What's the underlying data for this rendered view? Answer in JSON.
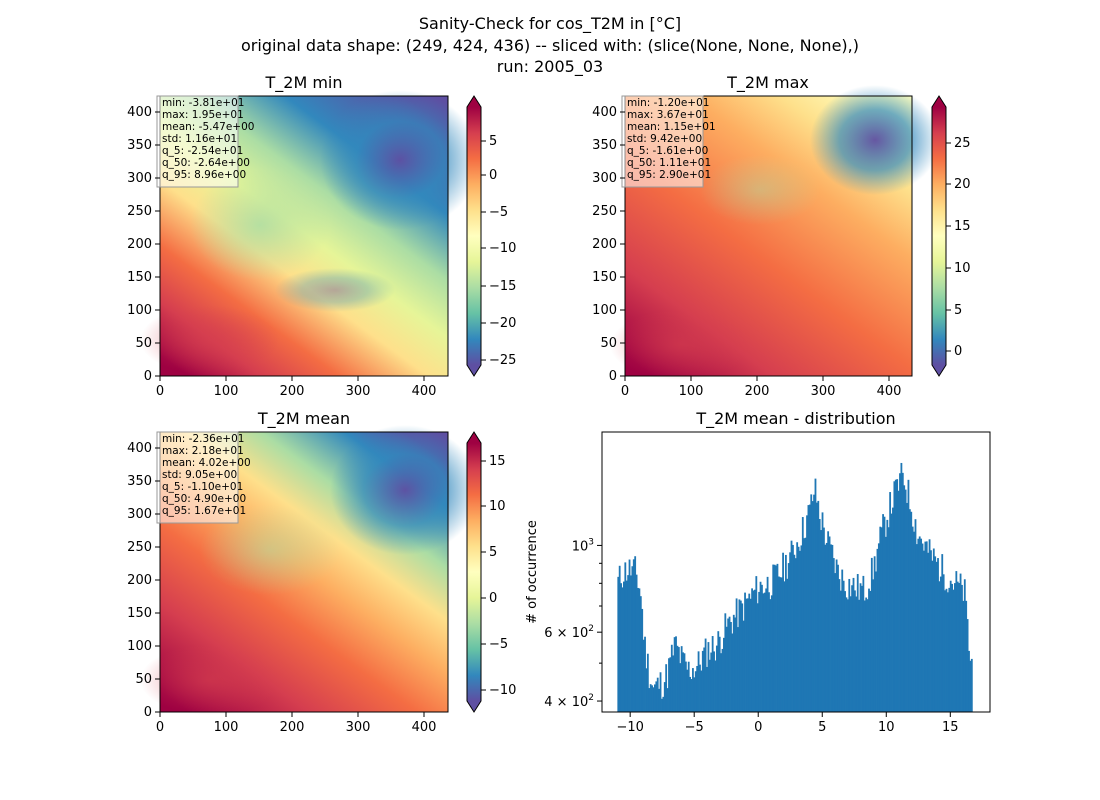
{
  "figure": {
    "suptitle_lines": [
      "Sanity-Check for cos_T2M in [°C]",
      "original data shape: (249, 424, 436) -- sliced with: (slice(None, None, None),)",
      "run: 2005_03"
    ]
  },
  "chart_data": [
    {
      "type": "heatmap",
      "title": "T_2M min",
      "xlim": [
        0,
        436
      ],
      "ylim": [
        0,
        424
      ],
      "xticks": [
        "0",
        "100",
        "200",
        "300",
        "400"
      ],
      "yticks": [
        "0",
        "50",
        "100",
        "150",
        "200",
        "250",
        "300",
        "350",
        "400"
      ],
      "colormap": "Spectral_r",
      "colorbar": {
        "range": [
          -26.3,
          9.0
        ],
        "extend": "both",
        "ticks": [
          "5",
          "0",
          "−5",
          "−10",
          "−15",
          "−20",
          "−25"
        ]
      },
      "stats": [
        "min: -3.81e+01",
        "max: 1.95e+01",
        "mean: -5.47e+00",
        "std: 1.16e+01",
        "q_5: -2.54e+01",
        "q_50: -2.64e+00",
        "q_95: 8.96e+00"
      ]
    },
    {
      "type": "heatmap",
      "title": "T_2M max",
      "xlim": [
        0,
        436
      ],
      "ylim": [
        0,
        424
      ],
      "xticks": [
        "0",
        "100",
        "200",
        "300",
        "400"
      ],
      "yticks": [
        "0",
        "50",
        "100",
        "150",
        "200",
        "250",
        "300",
        "350",
        "400"
      ],
      "colormap": "Spectral_r",
      "colorbar": {
        "range": [
          -2.9,
          29.0
        ],
        "extend": "both",
        "ticks": [
          "25",
          "20",
          "15",
          "10",
          "5",
          "0"
        ]
      },
      "stats": [
        "min: -1.20e+01",
        "max: 3.67e+01",
        "mean: 1.15e+01",
        "std: 9.42e+00",
        "q_5: -1.61e+00",
        "q_50: 1.11e+01",
        "q_95: 2.90e+01"
      ]
    },
    {
      "type": "heatmap",
      "title": "T_2M mean",
      "xlim": [
        0,
        436
      ],
      "ylim": [
        0,
        424
      ],
      "xticks": [
        "0",
        "100",
        "200",
        "300",
        "400"
      ],
      "yticks": [
        "0",
        "50",
        "100",
        "150",
        "200",
        "250",
        "300",
        "350",
        "400"
      ],
      "colormap": "Spectral_r",
      "colorbar": {
        "range": [
          -12.0,
          17.4
        ],
        "extend": "both",
        "ticks": [
          "15",
          "10",
          "5",
          "0",
          "−5",
          "−10"
        ]
      },
      "stats": [
        "min: -2.36e+01",
        "max: 2.18e+01",
        "mean: 4.02e+00",
        "std: 9.05e+00",
        "q_5: -1.10e+01",
        "q_50: 4.90e+00",
        "q_95: 1.67e+01"
      ]
    },
    {
      "type": "bar",
      "title": "T_2M mean - distribution",
      "xlabel": "",
      "ylabel": "# of occurrence",
      "yscale": "log",
      "xlim": [
        -12.2,
        18.1
      ],
      "ylim": [
        375,
        1950
      ],
      "xticks": [
        "−10",
        "−5",
        "0",
        "5",
        "10",
        "15"
      ],
      "yticks": [
        {
          "base": "4",
          "sup": "2"
        },
        {
          "base": "6",
          "sup": "2"
        },
        {
          "base": "",
          "sup": "3"
        }
      ],
      "bin_start": -11.0,
      "bin_width": 0.11,
      "color": "#1f77b4",
      "anchors": [
        [
          -11.0,
          800
        ],
        [
          -10.6,
          850
        ],
        [
          -10.2,
          870
        ],
        [
          -9.6,
          860
        ],
        [
          -9.2,
          760
        ],
        [
          -8.9,
          560
        ],
        [
          -8.5,
          470
        ],
        [
          -8.2,
          430
        ],
        [
          -7.8,
          440
        ],
        [
          -7.4,
          450
        ],
        [
          -7.1,
          470
        ],
        [
          -6.5,
          560
        ],
        [
          -6.1,
          520
        ],
        [
          -5.8,
          500
        ],
        [
          -5.5,
          480
        ],
        [
          -4.8,
          490
        ],
        [
          -4.0,
          540
        ],
        [
          -3.2,
          560
        ],
        [
          -2.5,
          620
        ],
        [
          -1.3,
          690
        ],
        [
          0,
          780
        ],
        [
          0.9,
          800
        ],
        [
          1.8,
          860
        ],
        [
          2.7,
          960
        ],
        [
          3.5,
          1100
        ],
        [
          4.0,
          1220
        ],
        [
          4.4,
          1400
        ],
        [
          4.8,
          1200
        ],
        [
          5.4,
          1020
        ],
        [
          6.2,
          860
        ],
        [
          6.8,
          800
        ],
        [
          7.6,
          780
        ],
        [
          8.3,
          770
        ],
        [
          9.0,
          870
        ],
        [
          9.6,
          1060
        ],
        [
          10.2,
          1230
        ],
        [
          10.8,
          1400
        ],
        [
          11.3,
          1520
        ],
        [
          11.8,
          1320
        ],
        [
          12.4,
          1080
        ],
        [
          13.3,
          960
        ],
        [
          14.2,
          880
        ],
        [
          15.0,
          820
        ],
        [
          15.6,
          790
        ],
        [
          16.1,
          760
        ],
        [
          16.5,
          520
        ],
        [
          16.7,
          500
        ]
      ]
    }
  ]
}
